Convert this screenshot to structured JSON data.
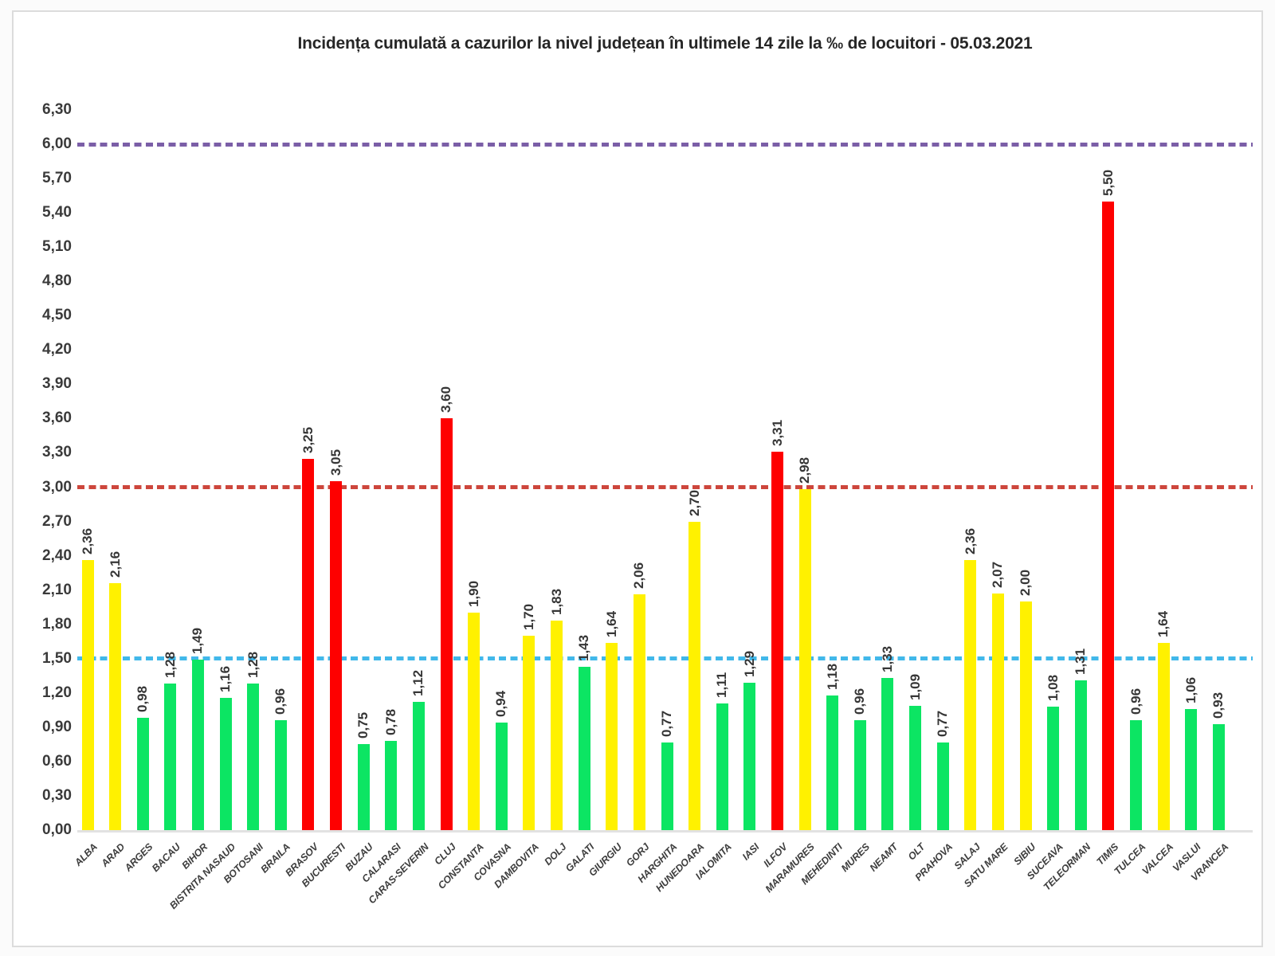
{
  "title": "Incidența cumulată a cazurilor la nivel județean în ultimele 14 zile la ‰ de locuitori - 05.03.2021",
  "chart_data": {
    "type": "bar",
    "title": "Incidența cumulată a cazurilor la nivel județean în ultimele 14 zile la ‰ de locuitori - 05.03.2021",
    "categories": [
      "ALBA",
      "ARAD",
      "ARGES",
      "BACAU",
      "BIHOR",
      "BISTRITA NASAUD",
      "BOTOSANI",
      "BRAILA",
      "BRASOV",
      "BUCURESTI",
      "BUZAU",
      "CALARASI",
      "CARAS-SEVERIN",
      "CLUJ",
      "CONSTANTA",
      "COVASNA",
      "DAMBOVITA",
      "DOLJ",
      "GALATI",
      "GIURGIU",
      "GORJ",
      "HARGHITA",
      "HUNEDOARA",
      "IALOMITA",
      "IASI",
      "ILFOV",
      "MARAMURES",
      "MEHEDINTI",
      "MURES",
      "NEAMT",
      "OLT",
      "PRAHOVA",
      "SALAJ",
      "SATU MARE",
      "SIBIU",
      "SUCEAVA",
      "TELEORMAN",
      "TIMIS",
      "TULCEA",
      "VALCEA",
      "VASLUI",
      "VRANCEA"
    ],
    "values": [
      2.36,
      2.16,
      0.98,
      1.28,
      1.49,
      1.16,
      1.28,
      0.96,
      3.25,
      3.05,
      0.75,
      0.78,
      1.12,
      3.6,
      1.9,
      0.94,
      1.7,
      1.83,
      1.43,
      1.64,
      2.06,
      0.77,
      2.7,
      1.11,
      1.29,
      3.31,
      2.98,
      1.18,
      0.96,
      1.33,
      1.09,
      0.77,
      2.36,
      2.07,
      2.0,
      1.08,
      1.31,
      5.5,
      0.96,
      1.64,
      1.06,
      0.93
    ],
    "yticks": [
      "0,00",
      "0,30",
      "0,60",
      "0,90",
      "1,20",
      "1,50",
      "1,80",
      "2,10",
      "2,40",
      "2,70",
      "3,00",
      "3,30",
      "3,60",
      "3,90",
      "4,20",
      "4,50",
      "4,80",
      "5,10",
      "5,40",
      "5,70",
      "6,00",
      "6,30"
    ],
    "ylim": [
      0,
      6.3
    ],
    "ytick_step": 0.3,
    "grid": false,
    "legend": false,
    "decimal_separator": ",",
    "color_rules": [
      {
        "min": 3.0,
        "level": "red",
        "color": "#fe0000"
      },
      {
        "min": 1.5,
        "level": "yellow",
        "color": "#fff100"
      },
      {
        "min": 0.0,
        "level": "green",
        "color": "#0ce563"
      }
    ],
    "thresholds": [
      {
        "value": 6.0,
        "name": "purple-threshold-line",
        "color": "#7b5ea7"
      },
      {
        "value": 3.0,
        "name": "red-threshold-line",
        "color": "#cd463c"
      },
      {
        "value": 1.5,
        "name": "blue-threshold-line",
        "color": "#41b8ea"
      }
    ]
  }
}
